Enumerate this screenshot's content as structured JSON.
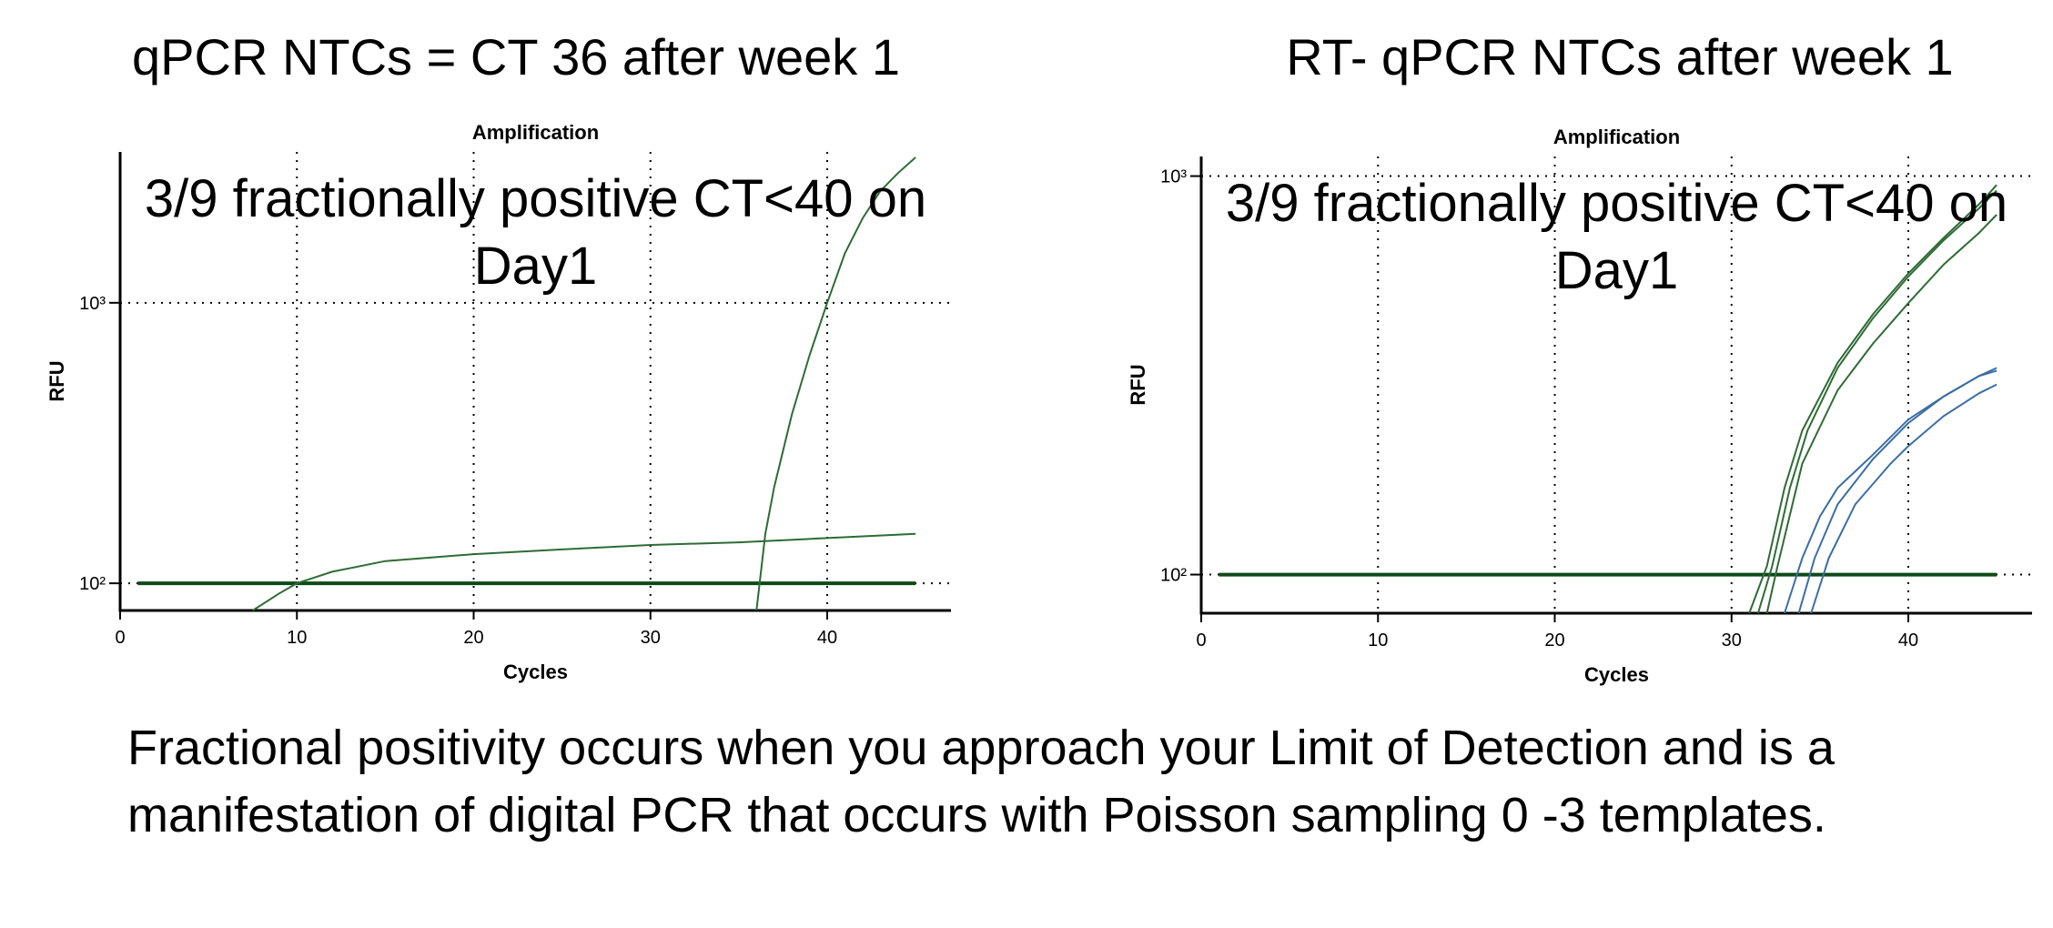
{
  "slide": {
    "heading_left": "qPCR NTCs = CT  36 after week 1",
    "heading_right": "RT- qPCR NTCs after week 1",
    "footer": "Fractional positivity occurs when you approach your Limit of Detection and is a manifestation of digital PCR that occurs with Poisson sampling  0 -3 templates."
  },
  "chart_data": [
    {
      "type": "line",
      "title": "Amplification",
      "x_label": "Cycles",
      "y_label": "RFU",
      "annotation": "3/9 fractionally positive CT<40 on Day1",
      "log_y": true,
      "grid": true,
      "xlim": [
        0,
        47
      ],
      "ylim": [
        80,
        3450
      ],
      "xticks": [
        0,
        10,
        20,
        30,
        40
      ],
      "yticks": [
        {
          "value": 100,
          "label": "10²"
        },
        {
          "value": 1000,
          "label": "10³"
        }
      ],
      "series": [
        {
          "color": "#0d4a17",
          "width": 4,
          "x": [
            1,
            45
          ],
          "values": [
            100,
            100
          ]
        },
        {
          "color": "#2e6b35",
          "width": 2,
          "x": [
            7.5,
            9,
            10,
            12,
            15,
            20,
            25,
            30,
            35,
            40,
            45
          ],
          "values": [
            80,
            92,
            100,
            110,
            120,
            127,
            132,
            137,
            140,
            145,
            150
          ]
        },
        {
          "color": "#2e6b35",
          "width": 2,
          "x": [
            36,
            36.5,
            37,
            38,
            39,
            40,
            41,
            42,
            43,
            44,
            45
          ],
          "values": [
            80,
            150,
            220,
            400,
            650,
            1000,
            1500,
            2000,
            2500,
            2900,
            3300
          ]
        }
      ]
    },
    {
      "type": "line",
      "title": "Amplification",
      "x_label": "Cycles",
      "y_label": "RFU",
      "annotation": "3/9 fractionally positive CT<40 on Day1",
      "log_y": true,
      "grid": true,
      "xlim": [
        0,
        47
      ],
      "ylim": [
        80,
        1120
      ],
      "xticks": [
        0,
        10,
        20,
        30,
        40
      ],
      "yticks": [
        {
          "value": 100,
          "label": "10²"
        },
        {
          "value": 1000,
          "label": "10³"
        }
      ],
      "series": [
        {
          "color": "#0d4a17",
          "width": 4,
          "x": [
            1,
            45
          ],
          "values": [
            100,
            100
          ]
        },
        {
          "color": "#2e6b35",
          "width": 2,
          "x": [
            31,
            32,
            33,
            34,
            36,
            38,
            40,
            42,
            44,
            45
          ],
          "values": [
            80,
            105,
            165,
            230,
            340,
            450,
            570,
            700,
            850,
            950
          ]
        },
        {
          "color": "#2e6b35",
          "width": 2,
          "x": [
            31.5,
            32.3,
            33.3,
            34.3,
            36,
            38,
            40,
            42,
            44,
            45
          ],
          "values": [
            80,
            105,
            165,
            230,
            330,
            440,
            560,
            690,
            830,
            920
          ]
        },
        {
          "color": "#2e6b35",
          "width": 2,
          "x": [
            32,
            32.6,
            34,
            36,
            38,
            40,
            42,
            44,
            45
          ],
          "values": [
            80,
            105,
            190,
            290,
            380,
            480,
            600,
            720,
            800
          ]
        },
        {
          "color": "#3a6ea5",
          "width": 2,
          "x": [
            33,
            34,
            35,
            36,
            38,
            40,
            42,
            44,
            45
          ],
          "values": [
            80,
            110,
            140,
            165,
            200,
            245,
            280,
            315,
            330
          ]
        },
        {
          "color": "#3a6ea5",
          "width": 2,
          "x": [
            33.8,
            34.7,
            36,
            38,
            40,
            42,
            44,
            45
          ],
          "values": [
            80,
            110,
            150,
            195,
            240,
            280,
            315,
            325
          ]
        },
        {
          "color": "#3a6ea5",
          "width": 2,
          "x": [
            34.5,
            35.5,
            37,
            39,
            40,
            42,
            44,
            45
          ],
          "values": [
            80,
            110,
            150,
            190,
            210,
            250,
            285,
            300
          ]
        }
      ]
    }
  ]
}
